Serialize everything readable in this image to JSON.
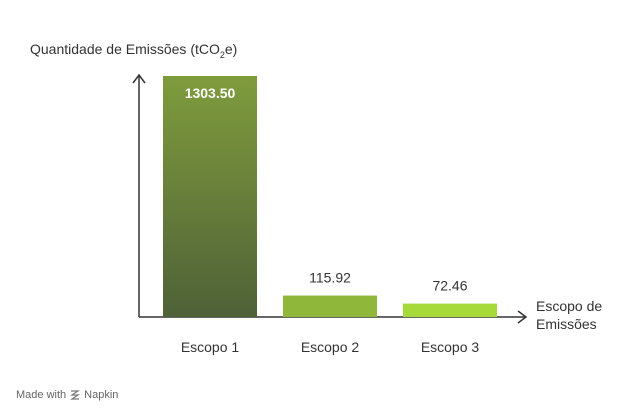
{
  "chart_data": {
    "type": "bar",
    "ylabel_main": "Quantidade de Emissões (tCO",
    "ylabel_sub": "2",
    "ylabel_end": "e)",
    "xlabel_lines": [
      "Escopo de",
      "Emissões"
    ],
    "categories": [
      "Escopo 1",
      "Escopo 2",
      "Escopo 3"
    ],
    "values": [
      1303.5,
      115.92,
      72.46
    ],
    "value_labels": [
      "1303.50",
      "115.92",
      "72.46"
    ],
    "ylim": [
      0,
      1303.5
    ],
    "colors": {
      "bar1_top": "#7f9c3c",
      "bar1_bottom": "#4f6138",
      "bar2": "#8fb83a",
      "bar3": "#a6d93a",
      "axis": "#333333"
    }
  },
  "footer": {
    "made_with": "Made with",
    "brand": "Napkin",
    "icon": "napkin-logo-icon"
  }
}
